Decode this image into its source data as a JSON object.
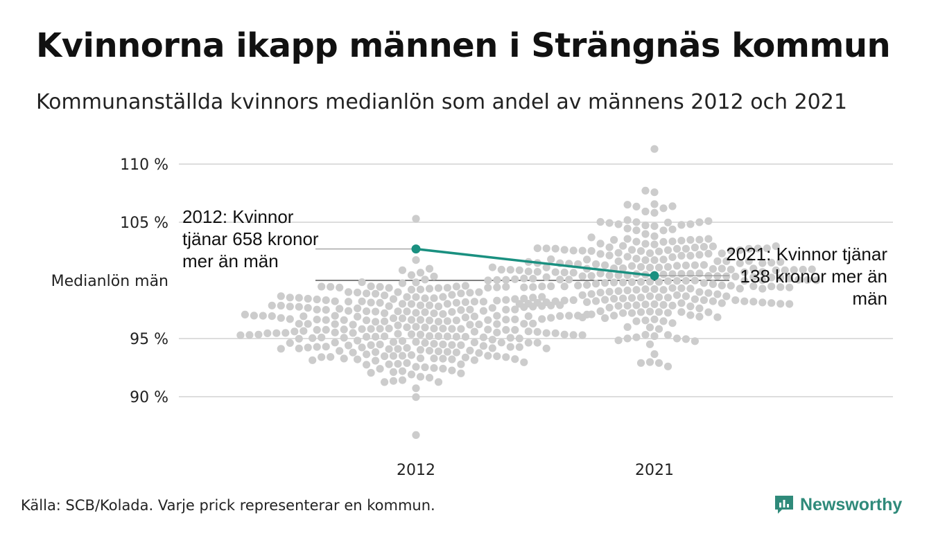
{
  "title": "Kvinnorna ikapp männen i Strängnäs kommun",
  "subtitle": "Kommunanställda kvinnors medianlön som andel av männens 2012 och 2021",
  "source": "Källa: SCB/Kolada. Varje prick representerar en kommun.",
  "brand": "Newsworthy",
  "colors": {
    "accent": "#1a9080",
    "dots": "#cccccc",
    "grid": "#dddddd",
    "refline": "#333333"
  },
  "annotations": {
    "left": "2012: Kvinnor tjänar 658 kronor mer än män",
    "right": "2021: Kvinnor tjänar 138 kronor mer än män"
  },
  "chart_data": {
    "type": "scatter",
    "style": "beeswarm",
    "x_categories": [
      "2012",
      "2021"
    ],
    "y_ticks": [
      {
        "value": 90,
        "label": "90 %"
      },
      {
        "value": 95,
        "label": "95 %"
      },
      {
        "value": 100,
        "label": "Medianlön män"
      },
      {
        "value": 105,
        "label": "105 %"
      },
      {
        "value": 110,
        "label": "110 %"
      }
    ],
    "ylim": [
      86.5,
      111.5
    ],
    "grid": true,
    "highlight_series": {
      "points": [
        {
          "x": "2012",
          "y": 102.7
        },
        {
          "x": "2021",
          "y": 100.4
        }
      ]
    },
    "distributions": [
      {
        "x": "2012",
        "median": 96,
        "sd": 2.3,
        "count": 290,
        "min": 86.7,
        "max": 105.3
      },
      {
        "x": "2021",
        "median": 100.5,
        "sd": 2.6,
        "count": 290,
        "min": 92.6,
        "max": 111.3
      }
    ]
  }
}
